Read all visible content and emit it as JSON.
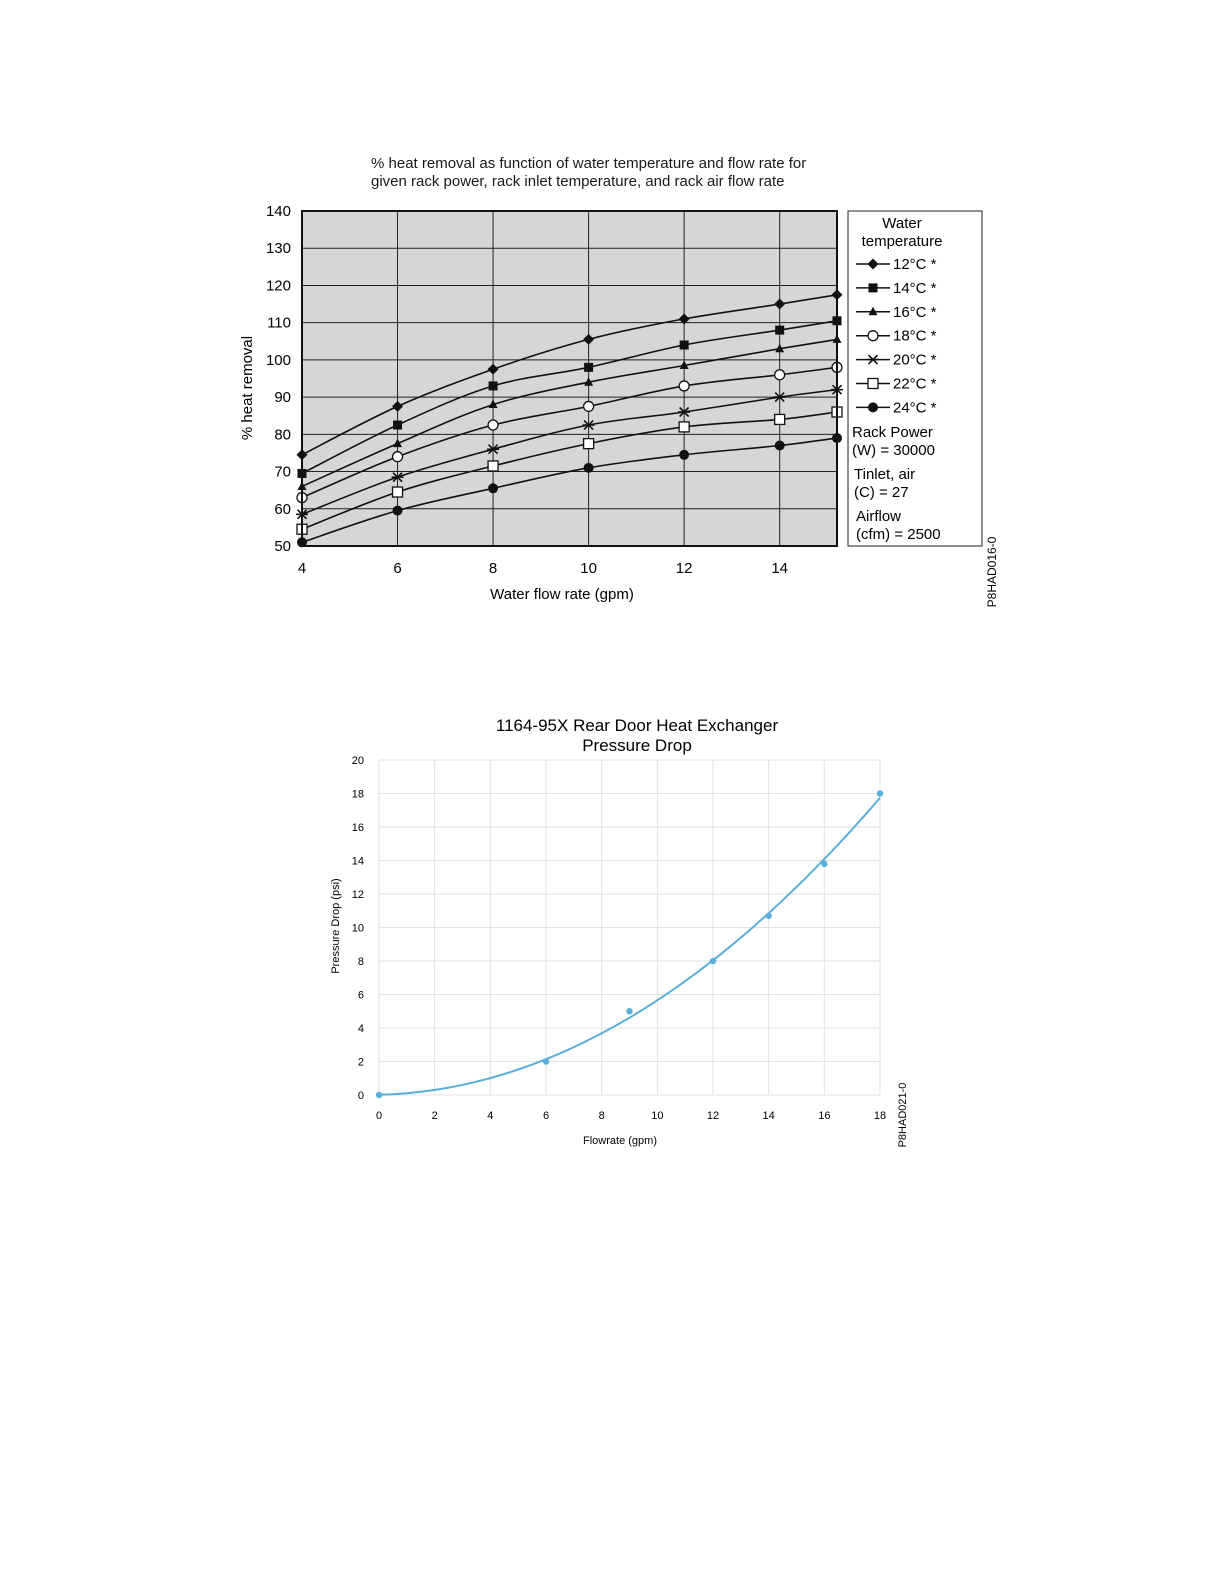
{
  "chart_data": [
    {
      "type": "line",
      "title_line1": "% heat removal as function of water temperature and flow rate for",
      "title_line2": "given rack power, rack inlet temperature, and rack air flow rate",
      "xlabel": "Water flow rate (gpm)",
      "ylabel": "% heat removal",
      "xlim": [
        4,
        15.2
      ],
      "ylim": [
        50,
        140
      ],
      "xticks": [
        4,
        6,
        8,
        10,
        12,
        14
      ],
      "yticks": [
        50,
        60,
        70,
        80,
        90,
        100,
        110,
        120,
        130,
        140
      ],
      "grid": true,
      "legend_position": "right",
      "x": [
        4,
        6,
        8,
        10,
        12,
        14,
        15.2
      ],
      "series": [
        {
          "name": "12°C *",
          "marker": "diamond",
          "values": [
            74.5,
            87.5,
            97.5,
            105.5,
            111,
            115,
            117.5
          ]
        },
        {
          "name": "14°C *",
          "marker": "square-filled",
          "values": [
            69.5,
            82.5,
            93,
            98,
            104,
            108,
            110.5
          ]
        },
        {
          "name": "16°C *",
          "marker": "triangle",
          "values": [
            66,
            77.5,
            88,
            94,
            98.5,
            103,
            105.5
          ]
        },
        {
          "name": "18°C *",
          "marker": "circle-open",
          "values": [
            63,
            74,
            82.5,
            87.5,
            93,
            96,
            98
          ]
        },
        {
          "name": "20°C *",
          "marker": "asterisk",
          "values": [
            58.5,
            68.5,
            76,
            82.5,
            86,
            90,
            92
          ]
        },
        {
          "name": "22°C *",
          "marker": "square-open",
          "values": [
            54.5,
            64.5,
            71.5,
            77.5,
            82,
            84,
            86
          ]
        },
        {
          "name": "24°C *",
          "marker": "circle-filled",
          "values": [
            51,
            59.5,
            65.5,
            71,
            74.5,
            77,
            79
          ]
        }
      ],
      "legend_title_line1": "Water",
      "legend_title_line2": "temperature",
      "notes": [
        [
          "Rack Power",
          "(W) = 30000"
        ],
        [
          "Tinlet, air",
          "(C) = 27"
        ],
        [
          "Airflow",
          "(cfm) = 2500"
        ]
      ],
      "figure_id": "P8HAD016-0"
    },
    {
      "type": "scatter",
      "title_line1": "1164-95X Rear Door Heat Exchanger",
      "title_line2": "Pressure Drop",
      "xlabel": "Flowrate (gpm)",
      "ylabel": "Pressure Drop (psi)",
      "xlim": [
        0,
        18
      ],
      "ylim": [
        0,
        20
      ],
      "xticks": [
        0,
        2,
        4,
        6,
        8,
        10,
        12,
        14,
        16,
        18
      ],
      "yticks": [
        0,
        2,
        4,
        6,
        8,
        10,
        12,
        14,
        16,
        18,
        20
      ],
      "grid": true,
      "color": "#5aaedc",
      "x": [
        0,
        6,
        9,
        12,
        14,
        16,
        18
      ],
      "y": [
        0,
        2,
        5,
        8,
        10.7,
        13.8,
        18
      ],
      "trendline": "polynomial",
      "figure_id": "P8HAD021-0"
    }
  ]
}
